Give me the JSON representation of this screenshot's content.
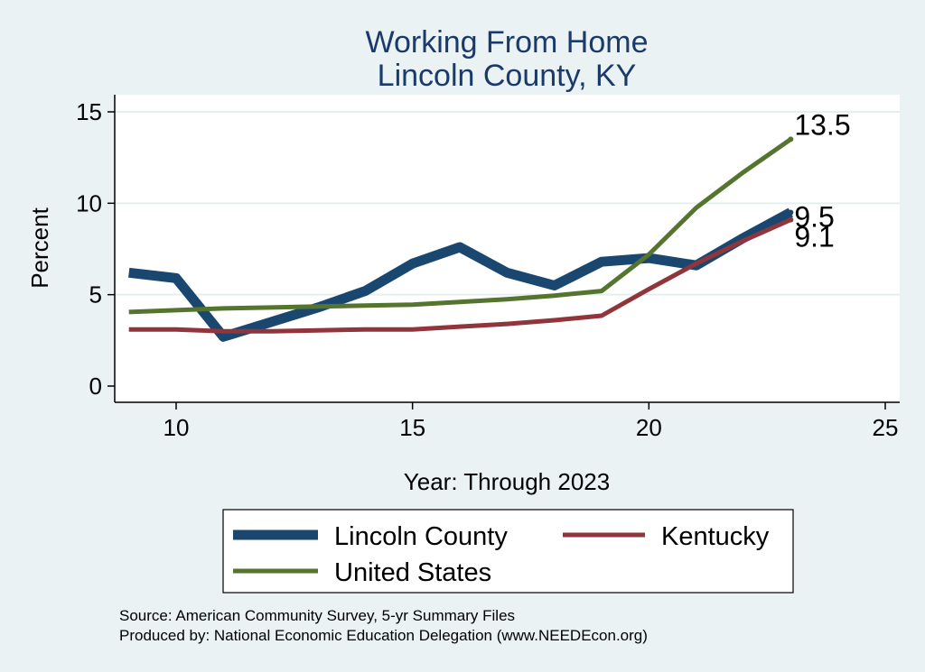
{
  "chart_data": {
    "type": "line",
    "title": [
      "Working From Home",
      "Lincoln County, KY"
    ],
    "xlabel": "Year: Through 2023",
    "ylabel": "Percent",
    "xlim": [
      9,
      25
    ],
    "ylim": [
      0,
      15
    ],
    "xticks": [
      10,
      15,
      20,
      25
    ],
    "yticks": [
      0,
      5,
      10,
      15
    ],
    "x": [
      9,
      10,
      11,
      12,
      13,
      14,
      15,
      16,
      17,
      18,
      19,
      20,
      21,
      22,
      23
    ],
    "series": [
      {
        "name": "Lincoln County",
        "color": "#1a476f",
        "values": [
          6.2,
          5.9,
          2.7,
          3.5,
          4.3,
          5.2,
          6.7,
          7.6,
          6.2,
          5.5,
          6.8,
          7.0,
          6.6,
          8.1,
          9.5
        ],
        "end_label": "9.5"
      },
      {
        "name": "Kentucky",
        "color": "#90353b",
        "values": [
          3.1,
          3.1,
          3.0,
          3.0,
          3.05,
          3.1,
          3.1,
          3.25,
          3.4,
          3.6,
          3.85,
          5.3,
          6.7,
          7.95,
          9.1
        ],
        "end_label": "9.1"
      },
      {
        "name": "United States",
        "color": "#55752f",
        "values": [
          4.05,
          4.15,
          4.25,
          4.3,
          4.35,
          4.4,
          4.45,
          4.6,
          4.75,
          4.95,
          5.2,
          7.2,
          9.75,
          11.7,
          13.5
        ],
        "end_label": "13.5"
      }
    ]
  },
  "legend": {
    "items": [
      "Lincoln County",
      "Kentucky",
      "United States"
    ]
  },
  "notes": {
    "source": "Source: American Community Survey, 5-yr Summary Files",
    "produced": "Produced by: National Economic Education Delegation (www.NEEDEcon.org)"
  }
}
